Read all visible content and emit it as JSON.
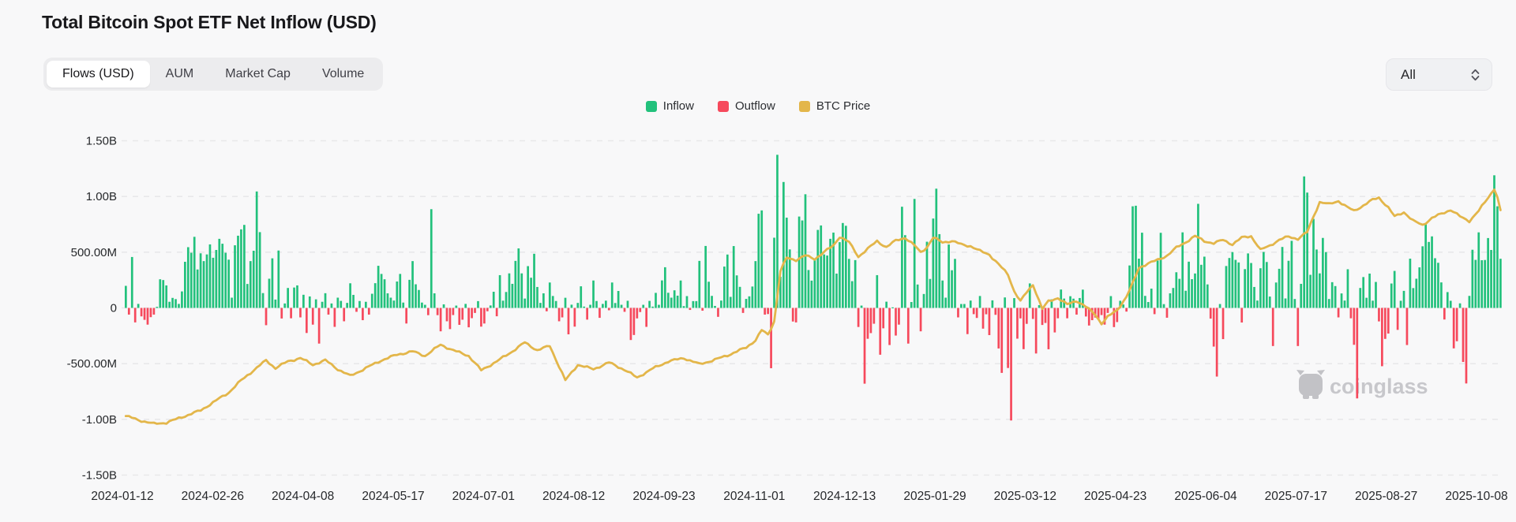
{
  "header": {
    "title": "Total Bitcoin Spot ETF Net Inflow (USD)"
  },
  "toolbar": {
    "tabs": [
      {
        "label": "Flows (USD)",
        "selected": true
      },
      {
        "label": "AUM",
        "selected": false
      },
      {
        "label": "Market Cap",
        "selected": false
      },
      {
        "label": "Volume",
        "selected": false
      }
    ],
    "range_selector": {
      "value": "All"
    }
  },
  "legend": [
    {
      "label": "Inflow",
      "color": "#22c17c"
    },
    {
      "label": "Outflow",
      "color": "#f6495c"
    },
    {
      "label": "BTC Price",
      "color": "#e3b64a"
    }
  ],
  "watermark": {
    "text": "coinglass",
    "color": "#c7c7cb"
  },
  "chart_data": {
    "type": "bar+line",
    "title": "Total Bitcoin Spot ETF Net Inflow (USD)",
    "frequency": "daily (trading days)",
    "x_start_date": "2024-01-12",
    "x_end_date": "2025-10-08",
    "x_tick_labels": [
      "2024-01-12",
      "2024-02-26",
      "2024-04-08",
      "2024-05-17",
      "2024-07-01",
      "2024-08-12",
      "2024-09-23",
      "2024-11-01",
      "2024-12-13",
      "2025-01-29",
      "2025-03-12",
      "2025-04-23",
      "2025-06-04",
      "2025-07-17",
      "2025-08-27",
      "2025-10-08"
    ],
    "y_axis": {
      "tick_labels": [
        "1.50B",
        "1.00B",
        "500.00M",
        "0",
        "-500.00M",
        "-1.00B",
        "-1.50B"
      ],
      "tick_values_musd": [
        1500,
        1000,
        500,
        0,
        -500,
        -1000,
        -1500
      ],
      "ylim_musd": [
        -1500,
        1500
      ],
      "grid": "horizontal dashed"
    },
    "legend_position": "top-center",
    "series": [
      {
        "name": "Net Flow (USD, millions; green=Inflow, red=Outflow)",
        "type": "bar",
        "color_positive": "#22c17c",
        "color_negative": "#f6495c",
        "values_musd": [
          198,
          -60,
          457,
          -130,
          36,
          -76,
          -107,
          -150,
          -83,
          -60,
          10,
          257,
          250,
          202,
          55,
          90,
          79,
          36,
          148,
          414,
          545,
          495,
          638,
          345,
          490,
          420,
          480,
          570,
          450,
          520,
          620,
          576,
          495,
          433,
          92,
          562,
          648,
          705,
          745,
          215,
          420,
          513,
          1045,
          680,
          133,
          -155,
          262,
          445,
          75,
          515,
          -95,
          40,
          179,
          -93,
          183,
          202,
          -85,
          118,
          -225,
          103,
          -150,
          77,
          -320,
          55,
          132,
          -60,
          40,
          -170,
          92,
          63,
          -120,
          45,
          221,
          117,
          -35,
          62,
          -110,
          55,
          -60,
          127,
          222,
          378,
          305,
          257,
          131,
          92,
          66,
          237,
          305,
          48,
          -140,
          252,
          420,
          212,
          161,
          48,
          28,
          -65,
          886,
          131,
          -65,
          -210,
          32,
          -120,
          -190,
          -64,
          21,
          -152,
          -106,
          36,
          -174,
          -92,
          -45,
          61,
          -168,
          -140,
          -30,
          22,
          145,
          -75,
          294,
          65,
          143,
          310,
          216,
          422,
          534,
          310,
          84,
          375,
          271,
          486,
          188,
          45,
          131,
          -30,
          228,
          107,
          62,
          -120,
          -85,
          91,
          -237,
          29,
          -168,
          45,
          194,
          12,
          -105,
          28,
          246,
          62,
          -89,
          36,
          65,
          -21,
          228,
          44,
          152,
          28,
          -35,
          64,
          -288,
          -243,
          -94,
          -37,
          28,
          -170,
          63,
          12,
          135,
          28,
          247,
          365,
          136,
          92,
          158,
          110,
          246,
          16,
          106,
          -18,
          61,
          61,
          422,
          -25,
          556,
          235,
          108,
          18,
          -80,
          66,
          371,
          479,
          99,
          555,
          292,
          189,
          -45,
          81,
          104,
          192,
          420,
          845,
          875,
          -60,
          -55,
          -541,
          630,
          1374,
          280,
          1130,
          810,
          525,
          -122,
          -130,
          820,
          785,
          1020,
          340,
          245,
          430,
          700,
          740,
          480,
          470,
          620,
          676,
          308,
          590,
          762,
          737,
          440,
          240,
          429,
          -171,
          21,
          -680,
          -277,
          -226,
          -142,
          294,
          -420,
          -183,
          56,
          -333,
          5,
          -248,
          -150,
          908,
          653,
          -320,
          53,
          978,
          210,
          -210,
          125,
          594,
          260,
          802,
          1070,
          662,
          246,
          92,
          569,
          338,
          440,
          -85,
          35,
          35,
          -235,
          66,
          -56,
          -90,
          107,
          -186,
          -57,
          -244,
          68,
          -62,
          -364,
          -583,
          94,
          -539,
          -1010,
          88,
          -276,
          -94,
          -370,
          -143,
          220,
          -99,
          -409,
          25,
          -153,
          -135,
          -371,
          77,
          -220,
          -93,
          165,
          84,
          -93,
          105,
          83,
          -60,
          89,
          164,
          -77,
          -158,
          -110,
          -87,
          -103,
          -64,
          -150,
          -45,
          106,
          -172,
          -127,
          64,
          31,
          -33,
          381,
          912,
          917,
          442,
          675,
          108,
          53,
          173,
          -56,
          425,
          674,
          34,
          -88,
          131,
          179,
          320,
          261,
          678,
          154,
          415,
          258,
          309,
          934,
          387,
          460,
          211,
          -96,
          -347,
          -616,
          35,
          -280,
          376,
          448,
          501,
          431,
          408,
          -131,
          348,
          489,
          403,
          188,
          66,
          356,
          502,
          412,
          102,
          -342,
          228,
          351,
          547,
          85,
          423,
          602,
          80,
          -342,
          216,
          1180,
          1035,
          297,
          799,
          524,
          310,
          628,
          501,
          80,
          231,
          196,
          -85,
          130,
          66,
          347,
          -93,
          -331,
          -812,
          179,
          277,
          91,
          308,
          65,
          233,
          -121,
          -523,
          -278,
          -230,
          219,
          332,
          -197,
          64,
          153,
          -333,
          442,
          178,
          262,
          364,
          553,
          757,
          592,
          642,
          446,
          405,
          229,
          -104,
          142,
          64,
          -363,
          -299,
          41,
          -485,
          -678,
          108,
          522,
          431,
          678,
          428,
          430,
          627,
          520,
          1190,
          912,
          441
        ]
      },
      {
        "name": "BTC Price (hidden secondary axis; anchor values expressed in left-axis millions position)",
        "type": "line",
        "color": "#e3b64a",
        "anchor_points_day_value_musd": [
          [
            0,
            -970
          ],
          [
            4,
            -1005
          ],
          [
            9,
            -1040
          ],
          [
            13,
            -1030
          ],
          [
            18,
            -980
          ],
          [
            24,
            -920
          ],
          [
            29,
            -830
          ],
          [
            33,
            -760
          ],
          [
            37,
            -650
          ],
          [
            41,
            -560
          ],
          [
            45,
            -470
          ],
          [
            48,
            -540
          ],
          [
            52,
            -480
          ],
          [
            56,
            -450
          ],
          [
            60,
            -510
          ],
          [
            64,
            -470
          ],
          [
            68,
            -550
          ],
          [
            72,
            -610
          ],
          [
            77,
            -540
          ],
          [
            82,
            -470
          ],
          [
            87,
            -420
          ],
          [
            92,
            -390
          ],
          [
            96,
            -430
          ],
          [
            101,
            -330
          ],
          [
            105,
            -380
          ],
          [
            110,
            -430
          ],
          [
            114,
            -560
          ],
          [
            119,
            -480
          ],
          [
            124,
            -390
          ],
          [
            128,
            -310
          ],
          [
            132,
            -380
          ],
          [
            136,
            -340
          ],
          [
            141,
            -650
          ],
          [
            145,
            -510
          ],
          [
            150,
            -550
          ],
          [
            155,
            -490
          ],
          [
            160,
            -555
          ],
          [
            164,
            -625
          ],
          [
            169,
            -545
          ],
          [
            174,
            -480
          ],
          [
            179,
            -450
          ],
          [
            184,
            -505
          ],
          [
            189,
            -465
          ],
          [
            194,
            -415
          ],
          [
            199,
            -355
          ],
          [
            202,
            -290
          ],
          [
            204,
            -200
          ],
          [
            206,
            -240
          ],
          [
            208,
            -120
          ],
          [
            210,
            330
          ],
          [
            212,
            450
          ],
          [
            215,
            430
          ],
          [
            218,
            470
          ],
          [
            221,
            440
          ],
          [
            224,
            500
          ],
          [
            227,
            560
          ],
          [
            229,
            640
          ],
          [
            232,
            590
          ],
          [
            235,
            460
          ],
          [
            238,
            530
          ],
          [
            241,
            600
          ],
          [
            244,
            545
          ],
          [
            247,
            605
          ],
          [
            250,
            630
          ],
          [
            253,
            560
          ],
          [
            255,
            500
          ],
          [
            257,
            545
          ],
          [
            259,
            630
          ],
          [
            262,
            590
          ],
          [
            265,
            600
          ],
          [
            268,
            570
          ],
          [
            271,
            555
          ],
          [
            274,
            510
          ],
          [
            277,
            480
          ],
          [
            280,
            390
          ],
          [
            283,
            300
          ],
          [
            285,
            150
          ],
          [
            287,
            60
          ],
          [
            289,
            140
          ],
          [
            291,
            210
          ],
          [
            294,
            -10
          ],
          [
            296,
            60
          ],
          [
            299,
            90
          ],
          [
            302,
            30
          ],
          [
            305,
            65
          ],
          [
            308,
            10
          ],
          [
            311,
            -60
          ],
          [
            313,
            -140
          ],
          [
            315,
            -80
          ],
          [
            318,
            -20
          ],
          [
            321,
            100
          ],
          [
            323,
            220
          ],
          [
            325,
            360
          ],
          [
            328,
            400
          ],
          [
            331,
            430
          ],
          [
            334,
            470
          ],
          [
            337,
            540
          ],
          [
            340,
            590
          ],
          [
            343,
            645
          ],
          [
            346,
            600
          ],
          [
            349,
            580
          ],
          [
            352,
            610
          ],
          [
            355,
            570
          ],
          [
            358,
            630
          ],
          [
            361,
            645
          ],
          [
            364,
            520
          ],
          [
            367,
            560
          ],
          [
            370,
            610
          ],
          [
            373,
            640
          ],
          [
            376,
            620
          ],
          [
            379,
            680
          ],
          [
            381,
            820
          ],
          [
            383,
            950
          ],
          [
            386,
            930
          ],
          [
            389,
            960
          ],
          [
            392,
            900
          ],
          [
            394,
            870
          ],
          [
            397,
            920
          ],
          [
            400,
            970
          ],
          [
            402,
            990
          ],
          [
            405,
            900
          ],
          [
            407,
            820
          ],
          [
            410,
            860
          ],
          [
            413,
            780
          ],
          [
            416,
            745
          ],
          [
            419,
            805
          ],
          [
            422,
            845
          ],
          [
            425,
            880
          ],
          [
            428,
            820
          ],
          [
            431,
            780
          ],
          [
            434,
            870
          ],
          [
            436,
            950
          ],
          [
            438,
            1030
          ],
          [
            439,
            1070
          ],
          [
            440,
            990
          ],
          [
            441,
            870
          ]
        ]
      }
    ]
  }
}
